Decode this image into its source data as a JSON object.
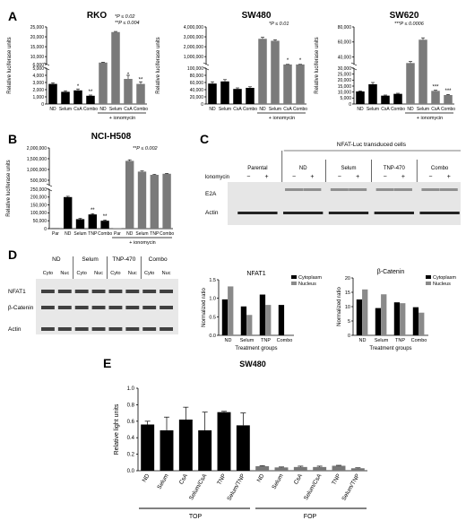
{
  "panels": {
    "A": {
      "label": "A",
      "charts": [
        {
          "type": "bar",
          "title": "RKO",
          "ylabel": "Relative luciferase units",
          "categories": [
            "ND",
            "Selum",
            "CsA",
            "Combo",
            "ND",
            "Selum",
            "CsA",
            "Combo"
          ],
          "values": [
            2800,
            1700,
            1900,
            1150,
            7000,
            22400,
            3500,
            2800
          ],
          "errors": [
            150,
            150,
            200,
            100,
            200,
            300,
            500,
            300
          ],
          "colors": [
            "#000000",
            "#000000",
            "#000000",
            "#000000",
            "#7a7a7a",
            "#7a7a7a",
            "#7a7a7a",
            "#7a7a7a"
          ],
          "stars": [
            "",
            "",
            "*",
            "**",
            "",
            "",
            "*",
            "**"
          ],
          "lower": {
            "max": 5000,
            "ticks": [
              "0",
              "1,000",
              "2,000",
              "3,000",
              "4,000",
              "5,000"
            ]
          },
          "upper": {
            "min": 6000,
            "max": 25000,
            "ticks": [
              "6,000",
              "10,000",
              "15,000",
              "20,000",
              "25,000"
            ]
          },
          "iono_label": "+ ionomycin",
          "annotations": [
            "*P ≤ 0.02",
            "**P ≤ 0.004"
          ]
        },
        {
          "type": "bar",
          "title": "SW480",
          "ylabel": "Relative luciferase units",
          "categories": [
            "ND",
            "Selum",
            "CsA",
            "Combo",
            "ND",
            "Selum",
            "CsA",
            "Combo"
          ],
          "values": [
            57000,
            63000,
            42000,
            45000,
            2800000,
            2600000,
            210000,
            210000
          ],
          "errors": [
            5000,
            5000,
            3000,
            3000,
            150000,
            100000,
            10000,
            10000
          ],
          "colors": [
            "#000000",
            "#000000",
            "#000000",
            "#000000",
            "#7a7a7a",
            "#7a7a7a",
            "#7a7a7a",
            "#7a7a7a"
          ],
          "stars": [
            "",
            "",
            "",
            "",
            "",
            "",
            "*",
            "*"
          ],
          "lower": {
            "max": 100000,
            "ticks": [
              "0",
              "20,000",
              "40,000",
              "60,000",
              "80,000",
              "100,000"
            ]
          },
          "upper": {
            "min": 200000,
            "max": 4000000,
            "ticks": [
              "1,000,000",
              "2,000,000",
              "3,000,000",
              "4,000,000"
            ]
          },
          "iono_label": "+ ionomycin",
          "annotations": [
            "*P ≤ 0.01"
          ]
        },
        {
          "type": "bar",
          "title": "SW620",
          "ylabel": "Relative luciferase units",
          "categories": [
            "ND",
            "Selum",
            "CsA",
            "Combo",
            "ND",
            "Selum",
            "CsA",
            "Combo"
          ],
          "values": [
            10500,
            16500,
            7000,
            8500,
            32000,
            63000,
            11000,
            7500
          ],
          "errors": [
            500,
            1500,
            500,
            500,
            2000,
            2500,
            500,
            500
          ],
          "colors": [
            "#000000",
            "#000000",
            "#000000",
            "#000000",
            "#7a7a7a",
            "#7a7a7a",
            "#7a7a7a",
            "#7a7a7a"
          ],
          "stars": [
            "",
            "",
            "",
            "",
            "",
            "",
            "***",
            "***"
          ],
          "lower": {
            "max": 30000,
            "ticks": [
              "0",
              "5,000",
              "10,000",
              "15,000",
              "20,000",
              "25,000",
              "30,000"
            ]
          },
          "upper": {
            "min": 30000,
            "max": 80000,
            "ticks": [
              "40,000",
              "60,000",
              "80,000"
            ]
          },
          "iono_label": "+ ionomycin",
          "annotations": [
            "***P ≤ 0.0006"
          ]
        }
      ]
    },
    "B": {
      "label": "B",
      "chart": {
        "type": "bar",
        "title": "NCI-H508",
        "ylabel": "Relative luciferase units",
        "categories": [
          "Par",
          "ND",
          "Selum",
          "TNP",
          "Combo",
          "Par",
          "ND",
          "Selum",
          "TNP",
          "Combo"
        ],
        "values": [
          1500,
          200000,
          60000,
          90000,
          50000,
          3000,
          1400000,
          900000,
          750000,
          800000
        ],
        "errors": [
          0,
          5000,
          5000,
          5000,
          5000,
          0,
          50000,
          30000,
          20000,
          20000
        ],
        "colors": [
          "#000000",
          "#000000",
          "#000000",
          "#000000",
          "#000000",
          "#7a7a7a",
          "#7a7a7a",
          "#7a7a7a",
          "#7a7a7a",
          "#7a7a7a"
        ],
        "stars": [
          "",
          "",
          "",
          "**",
          "**",
          "",
          "",
          "",
          "",
          ""
        ],
        "lower": {
          "max": 250000,
          "ticks": [
            "0",
            "50,000",
            "100,000",
            "150,000",
            "200,000",
            "250,000"
          ]
        },
        "upper": {
          "min": 250000,
          "max": 2000000,
          "ticks": [
            "500,000",
            "1,000,000",
            "1,500,000",
            "2,000,000"
          ]
        },
        "iono_label": "+ ionomycin",
        "annotations": [
          "**P ≤ 0.002"
        ]
      }
    },
    "C": {
      "label": "C",
      "header": "NFAT-Luc transduced cells",
      "groups": [
        "Parental",
        "ND",
        "Selum",
        "TNP-470",
        "Combo"
      ],
      "ionomycin_label": "Ionomycin",
      "signs": [
        "−",
        "+",
        "−",
        "+",
        "−",
        "+",
        "−",
        "+",
        "−",
        "+"
      ],
      "rows": [
        "E2A",
        "Actin"
      ]
    },
    "D": {
      "label": "D",
      "blot": {
        "groups": [
          "ND",
          "Selum",
          "TNP-470",
          "Combo"
        ],
        "fractions": [
          "Cyto",
          "Nuc",
          "Cyto",
          "Nuc",
          "Cyto",
          "Nuc",
          "Cyto",
          "Nuc"
        ],
        "rows": [
          "NFAT1",
          "β-Catenin",
          "Actin"
        ]
      },
      "charts": [
        {
          "type": "bar",
          "title": "NFAT1",
          "ylabel": "Normalized ratio",
          "xlabel": "Treatment groups",
          "categories": [
            "ND",
            "Selum",
            "TNP",
            "Combo"
          ],
          "series": [
            {
              "name": "Cytoplasm",
              "values": [
                0.97,
                0.78,
                1.1,
                0.82
              ],
              "color": "#000000"
            },
            {
              "name": "Nucleus",
              "values": [
                1.32,
                0.55,
                0.82,
                0.02
              ],
              "color": "#8a8a8a"
            }
          ],
          "ylim": [
            0,
            1.5
          ],
          "ticks": [
            "0.0",
            "0.5",
            "1.0",
            "1.5"
          ]
        },
        {
          "type": "bar",
          "title": "β-Catenin",
          "ylabel": "Normalized ratio",
          "xlabel": "Treatment groups",
          "categories": [
            "ND",
            "Selum",
            "TNP",
            "Combo"
          ],
          "series": [
            {
              "name": "Cytoplasm",
              "values": [
                12.5,
                9.5,
                11.5,
                9.8
              ],
              "color": "#000000"
            },
            {
              "name": "Nucleus",
              "values": [
                16.0,
                14.3,
                11.2,
                7.9
              ],
              "color": "#8a8a8a"
            }
          ],
          "ylim": [
            0,
            20
          ],
          "ticks": [
            "0",
            "5",
            "10",
            "15",
            "20"
          ]
        }
      ]
    },
    "E": {
      "label": "E",
      "chart": {
        "type": "bar",
        "title": "SW480",
        "ylabel": "Relative light units",
        "categories": [
          "ND",
          "Selum",
          "CsA",
          "Selum/CsA",
          "TNP",
          "Selum/TNP",
          "ND",
          "Selum",
          "CsA",
          "Selum/CsA",
          "TNP",
          "Selum/TNP"
        ],
        "values": [
          0.56,
          0.49,
          0.62,
          0.49,
          0.71,
          0.55,
          0.055,
          0.04,
          0.045,
          0.045,
          0.06,
          0.03
        ],
        "errors": [
          0.04,
          0.16,
          0.15,
          0.22,
          0.01,
          0.15,
          0.005,
          0.005,
          0.01,
          0.01,
          0.005,
          0.005
        ],
        "ylim": [
          0,
          1.0
        ],
        "ticks": [
          "0.0",
          "0.2",
          "0.4",
          "0.6",
          "0.8",
          "1.0"
        ],
        "groups": [
          "TOP",
          "FOP"
        ],
        "bar_colors": [
          "#000000",
          "#777777"
        ]
      }
    }
  }
}
